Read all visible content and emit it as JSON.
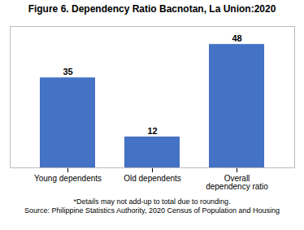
{
  "chart_data": {
    "type": "bar",
    "title": "Figure 6. Dependency Ratio Bacnotan, La Union:2020",
    "categories": [
      "Young dependents",
      "Old dependents",
      "Overall\ndependency ratio"
    ],
    "values": [
      35,
      12,
      48
    ],
    "color": "#4472C4",
    "ylim": [
      0,
      55
    ],
    "data_labels": true,
    "tick_labels": "x",
    "annotations": [
      "*Details may not add-up to total due to rounding.",
      "Source: Philippine Statistics Authority, 2020 Census of Population and Housing"
    ]
  }
}
